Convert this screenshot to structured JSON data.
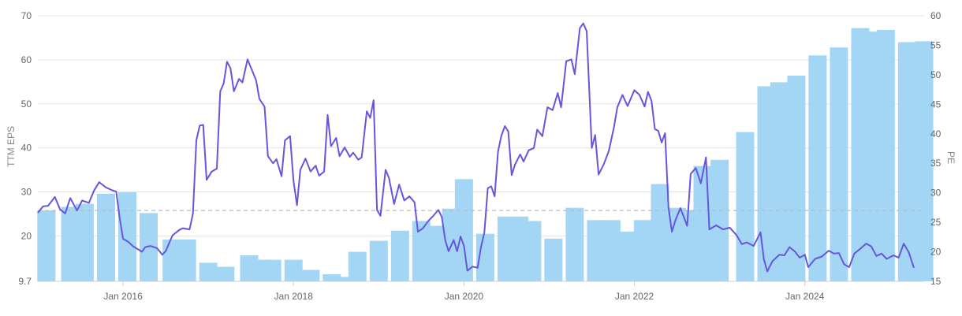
{
  "chart_data": {
    "type": "bar+line",
    "colors": {
      "bars": "#a3d6f5",
      "line": "#6655dd",
      "reference_line": "#bbbbbb",
      "grid": "#e3e3e3"
    },
    "left_axis": {
      "label": "TTM EPS",
      "ylim": [
        9.7,
        70
      ],
      "ticks": [
        9.7,
        20,
        30,
        40,
        50,
        60,
        70
      ]
    },
    "right_axis": {
      "label": "PE",
      "ylim": [
        15,
        60
      ],
      "ticks": [
        15,
        20,
        25,
        30,
        35,
        40,
        45,
        50,
        55,
        60
      ]
    },
    "x_axis": {
      "ticks": [
        "Jan 2016",
        "Jan 2018",
        "Jan 2020",
        "Jan 2022",
        "Jan 2024"
      ],
      "tick_years": [
        2016,
        2018,
        2020,
        2022,
        2024
      ],
      "range": [
        2015.0,
        2025.4
      ]
    },
    "reference_line": {
      "axis": "right",
      "value": 27
    },
    "bars": {
      "name": "TTM EPS",
      "axis": "left",
      "x": [
        2015.1,
        2015.38,
        2015.55,
        2015.8,
        2016.05,
        2016.3,
        2016.57,
        2016.75,
        2017.0,
        2017.2,
        2017.48,
        2017.62,
        2017.75,
        2018.0,
        2018.2,
        2018.45,
        2018.6,
        2018.75,
        2019.0,
        2019.25,
        2019.5,
        2019.7,
        2019.85,
        2020.0,
        2020.25,
        2020.5,
        2020.65,
        2020.8,
        2021.05,
        2021.3,
        2021.55,
        2021.73,
        2021.9,
        2022.1,
        2022.3,
        2022.5,
        2022.65,
        2022.8,
        2023.0,
        2023.3,
        2023.55,
        2023.7,
        2023.9,
        2024.15,
        2024.4,
        2024.65,
        2024.8,
        2024.95,
        2025.2,
        2025.4
      ],
      "values": [
        25.8,
        26.6,
        27.3,
        29.6,
        29.9,
        25.2,
        19.2,
        19.2,
        13.9,
        13.0,
        15.6,
        14.6,
        14.6,
        14.6,
        12.3,
        11.3,
        10.7,
        16.4,
        18.9,
        21.2,
        23.4,
        22.3,
        26.2,
        32.9,
        20.5,
        24.4,
        24.4,
        23.4,
        19.4,
        26.4,
        23.6,
        23.6,
        21.0,
        23.6,
        31.8,
        26.4,
        25.9,
        35.9,
        37.3,
        43.6,
        54.0,
        54.9,
        56.4,
        61.0,
        62.8,
        67.2,
        66.4,
        66.8,
        64.0,
        64.2
      ]
    },
    "series": [
      {
        "name": "PE",
        "axis": "right",
        "points": [
          [
            2015.0,
            26.6
          ],
          [
            2015.06,
            27.7
          ],
          [
            2015.12,
            27.8
          ],
          [
            2015.2,
            29.3
          ],
          [
            2015.26,
            27.2
          ],
          [
            2015.32,
            26.5
          ],
          [
            2015.38,
            29.1
          ],
          [
            2015.46,
            27.0
          ],
          [
            2015.52,
            28.7
          ],
          [
            2015.6,
            28.3
          ],
          [
            2015.66,
            30.4
          ],
          [
            2015.72,
            31.8
          ],
          [
            2015.8,
            30.9
          ],
          [
            2015.86,
            30.5
          ],
          [
            2015.92,
            30.2
          ],
          [
            2015.96,
            25.7
          ],
          [
            2016.0,
            22.2
          ],
          [
            2016.06,
            21.7
          ],
          [
            2016.12,
            20.9
          ],
          [
            2016.18,
            20.4
          ],
          [
            2016.22,
            20.0
          ],
          [
            2016.26,
            20.8
          ],
          [
            2016.32,
            21.0
          ],
          [
            2016.4,
            20.6
          ],
          [
            2016.46,
            19.5
          ],
          [
            2016.5,
            20.1
          ],
          [
            2016.58,
            22.8
          ],
          [
            2016.66,
            23.7
          ],
          [
            2016.7,
            24.0
          ],
          [
            2016.78,
            23.8
          ],
          [
            2016.82,
            26.5
          ],
          [
            2016.86,
            38.9
          ],
          [
            2016.9,
            41.4
          ],
          [
            2016.94,
            41.5
          ],
          [
            2016.98,
            32.2
          ],
          [
            2017.04,
            33.6
          ],
          [
            2017.1,
            34.1
          ],
          [
            2017.14,
            47.2
          ],
          [
            2017.18,
            48.5
          ],
          [
            2017.22,
            52.2
          ],
          [
            2017.26,
            51.1
          ],
          [
            2017.3,
            47.2
          ],
          [
            2017.36,
            49.3
          ],
          [
            2017.4,
            48.7
          ],
          [
            2017.46,
            52.6
          ],
          [
            2017.5,
            51.2
          ],
          [
            2017.56,
            49.1
          ],
          [
            2017.6,
            45.9
          ],
          [
            2017.66,
            44.6
          ],
          [
            2017.7,
            36.2
          ],
          [
            2017.76,
            35.0
          ],
          [
            2017.8,
            35.7
          ],
          [
            2017.86,
            32.8
          ],
          [
            2017.9,
            38.9
          ],
          [
            2017.96,
            39.6
          ],
          [
            2018.0,
            32.0
          ],
          [
            2018.04,
            27.9
          ],
          [
            2018.08,
            33.9
          ],
          [
            2018.14,
            35.8
          ],
          [
            2018.2,
            33.6
          ],
          [
            2018.26,
            34.6
          ],
          [
            2018.3,
            32.9
          ],
          [
            2018.36,
            33.6
          ],
          [
            2018.4,
            43.2
          ],
          [
            2018.44,
            37.9
          ],
          [
            2018.5,
            39.3
          ],
          [
            2018.54,
            36.2
          ],
          [
            2018.6,
            37.7
          ],
          [
            2018.66,
            36.1
          ],
          [
            2018.7,
            36.8
          ],
          [
            2018.76,
            35.6
          ],
          [
            2018.8,
            36.0
          ],
          [
            2018.86,
            43.8
          ],
          [
            2018.9,
            42.7
          ],
          [
            2018.94,
            45.7
          ],
          [
            2018.98,
            27.1
          ],
          [
            2019.02,
            26.1
          ],
          [
            2019.08,
            33.9
          ],
          [
            2019.12,
            32.5
          ],
          [
            2019.18,
            28.1
          ],
          [
            2019.24,
            31.4
          ],
          [
            2019.3,
            28.7
          ],
          [
            2019.36,
            29.4
          ],
          [
            2019.42,
            28.4
          ],
          [
            2019.46,
            23.4
          ],
          [
            2019.52,
            24.0
          ],
          [
            2019.58,
            25.2
          ],
          [
            2019.64,
            26.1
          ],
          [
            2019.7,
            27.1
          ],
          [
            2019.74,
            25.9
          ],
          [
            2019.78,
            22.0
          ],
          [
            2019.82,
            20.1
          ],
          [
            2019.88,
            22.0
          ],
          [
            2019.92,
            20.1
          ],
          [
            2019.96,
            22.6
          ],
          [
            2020.0,
            21.0
          ],
          [
            2020.04,
            16.8
          ],
          [
            2020.1,
            17.5
          ],
          [
            2020.16,
            17.3
          ],
          [
            2020.2,
            20.8
          ],
          [
            2020.24,
            23.3
          ],
          [
            2020.28,
            30.8
          ],
          [
            2020.32,
            31.1
          ],
          [
            2020.36,
            29.4
          ],
          [
            2020.4,
            37.0
          ],
          [
            2020.44,
            39.7
          ],
          [
            2020.48,
            41.3
          ],
          [
            2020.52,
            40.4
          ],
          [
            2020.56,
            33.0
          ],
          [
            2020.6,
            34.8
          ],
          [
            2020.66,
            36.5
          ],
          [
            2020.7,
            35.3
          ],
          [
            2020.76,
            37.2
          ],
          [
            2020.82,
            37.6
          ],
          [
            2020.86,
            40.7
          ],
          [
            2020.92,
            39.6
          ],
          [
            2020.98,
            44.5
          ],
          [
            2021.04,
            44.0
          ],
          [
            2021.1,
            46.9
          ],
          [
            2021.14,
            44.5
          ],
          [
            2021.2,
            52.3
          ],
          [
            2021.26,
            52.6
          ],
          [
            2021.3,
            50.1
          ],
          [
            2021.36,
            57.9
          ],
          [
            2021.4,
            58.7
          ],
          [
            2021.44,
            57.4
          ],
          [
            2021.5,
            37.6
          ],
          [
            2021.54,
            39.8
          ],
          [
            2021.58,
            33.1
          ],
          [
            2021.64,
            34.8
          ],
          [
            2021.7,
            37.1
          ],
          [
            2021.76,
            41.1
          ],
          [
            2021.8,
            44.5
          ],
          [
            2021.86,
            46.6
          ],
          [
            2021.92,
            44.7
          ],
          [
            2022.0,
            47.4
          ],
          [
            2022.06,
            46.6
          ],
          [
            2022.12,
            44.6
          ],
          [
            2022.16,
            47.1
          ],
          [
            2022.2,
            45.6
          ],
          [
            2022.24,
            40.8
          ],
          [
            2022.28,
            40.5
          ],
          [
            2022.32,
            38.5
          ],
          [
            2022.36,
            40.1
          ],
          [
            2022.4,
            27.5
          ],
          [
            2022.44,
            23.4
          ],
          [
            2022.48,
            25.3
          ],
          [
            2022.54,
            27.4
          ],
          [
            2022.58,
            25.9
          ],
          [
            2022.62,
            24.4
          ],
          [
            2022.66,
            33.2
          ],
          [
            2022.72,
            34.2
          ],
          [
            2022.78,
            31.6
          ],
          [
            2022.84,
            36.0
          ],
          [
            2022.88,
            23.8
          ],
          [
            2022.96,
            24.5
          ],
          [
            2023.04,
            23.8
          ],
          [
            2023.12,
            24.1
          ],
          [
            2023.2,
            22.8
          ],
          [
            2023.26,
            21.3
          ],
          [
            2023.32,
            21.6
          ],
          [
            2023.4,
            21.0
          ],
          [
            2023.48,
            23.3
          ],
          [
            2023.52,
            18.7
          ],
          [
            2023.56,
            16.7
          ],
          [
            2023.62,
            18.4
          ],
          [
            2023.7,
            19.5
          ],
          [
            2023.76,
            19.4
          ],
          [
            2023.82,
            20.8
          ],
          [
            2023.88,
            20.1
          ],
          [
            2023.94,
            19.0
          ],
          [
            2024.0,
            19.5
          ],
          [
            2024.04,
            17.4
          ],
          [
            2024.12,
            18.8
          ],
          [
            2024.2,
            19.2
          ],
          [
            2024.28,
            20.2
          ],
          [
            2024.34,
            19.7
          ],
          [
            2024.4,
            19.8
          ],
          [
            2024.46,
            17.9
          ],
          [
            2024.52,
            17.4
          ],
          [
            2024.58,
            19.7
          ],
          [
            2024.64,
            20.4
          ],
          [
            2024.72,
            21.4
          ],
          [
            2024.78,
            20.9
          ],
          [
            2024.84,
            19.3
          ],
          [
            2024.9,
            19.7
          ],
          [
            2024.96,
            18.8
          ],
          [
            2025.04,
            19.4
          ],
          [
            2025.1,
            19.0
          ],
          [
            2025.16,
            21.4
          ],
          [
            2025.22,
            19.9
          ],
          [
            2025.28,
            17.3
          ]
        ]
      }
    ]
  }
}
